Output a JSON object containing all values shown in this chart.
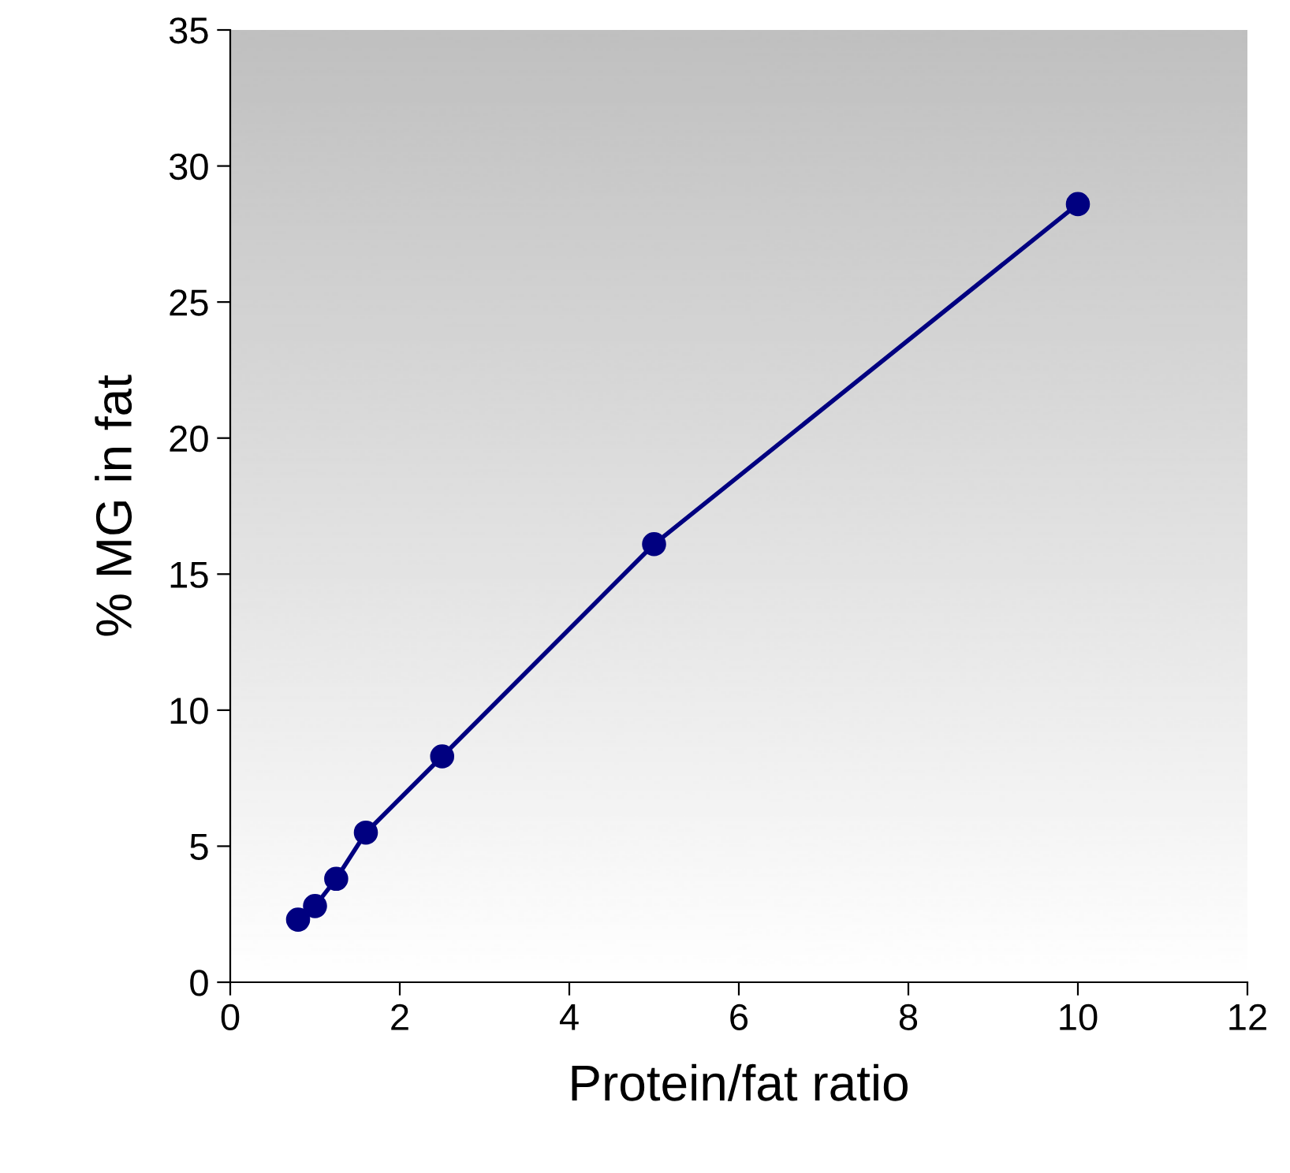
{
  "chart_data": {
    "type": "line",
    "xlabel": "Protein/fat ratio",
    "ylabel": "% MG in fat",
    "x": [
      0.8,
      1.0,
      1.25,
      1.6,
      2.5,
      5,
      10
    ],
    "series": [
      {
        "color": "#000080",
        "values": [
          2.3,
          2.8,
          3.8,
          5.5,
          8.3,
          16.1,
          28.6
        ]
      }
    ],
    "xlim": [
      0,
      12
    ],
    "xticks": [
      0,
      2,
      4,
      6,
      8,
      10,
      12
    ],
    "ylim": [
      0,
      35
    ],
    "yticks": [
      0,
      5,
      10,
      15,
      20,
      25,
      30,
      35
    ],
    "marker": "circle",
    "line_style": "solid",
    "grid": false,
    "legend": false
  }
}
